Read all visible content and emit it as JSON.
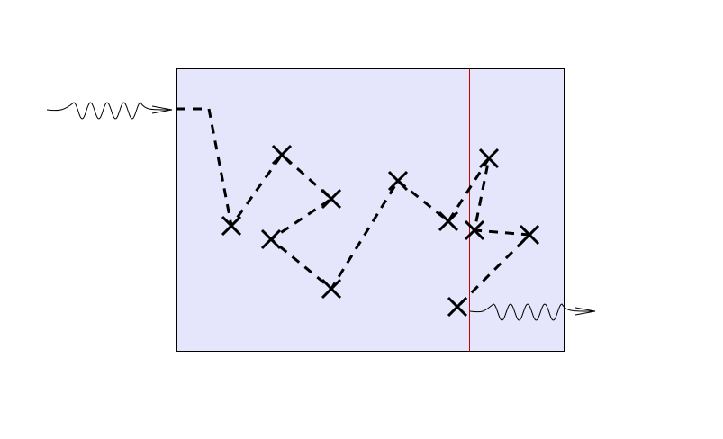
{
  "diagram": {
    "colors": {
      "region_fill": "#e5e5fb",
      "region_stroke": "#000000",
      "boundary_line": "#cc0000",
      "path": "#000000",
      "marker": "#000000",
      "wave": "#000000"
    },
    "icons": {
      "marker": "cross-marker",
      "incoming": "wavy-arrow-in",
      "outgoing": "wavy-arrow-out"
    }
  }
}
